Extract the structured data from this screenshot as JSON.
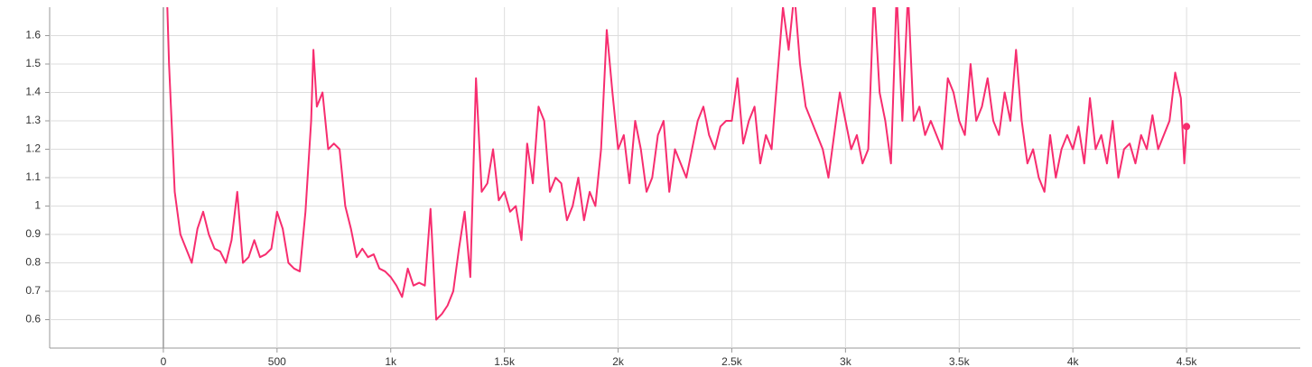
{
  "chart_data": {
    "type": "line",
    "x": [
      10,
      25,
      50,
      75,
      100,
      125,
      150,
      175,
      200,
      225,
      250,
      275,
      300,
      325,
      350,
      375,
      400,
      425,
      450,
      475,
      500,
      525,
      550,
      575,
      600,
      625,
      650,
      660,
      675,
      700,
      725,
      750,
      775,
      800,
      825,
      850,
      875,
      900,
      925,
      950,
      975,
      1000,
      1025,
      1050,
      1075,
      1100,
      1125,
      1150,
      1175,
      1200,
      1225,
      1250,
      1275,
      1300,
      1325,
      1350,
      1375,
      1400,
      1425,
      1450,
      1475,
      1500,
      1525,
      1550,
      1575,
      1600,
      1625,
      1650,
      1675,
      1700,
      1725,
      1750,
      1775,
      1800,
      1825,
      1850,
      1875,
      1900,
      1925,
      1950,
      1975,
      2000,
      2025,
      2050,
      2075,
      2100,
      2125,
      2150,
      2175,
      2200,
      2225,
      2250,
      2275,
      2300,
      2325,
      2350,
      2375,
      2400,
      2425,
      2450,
      2475,
      2500,
      2525,
      2550,
      2575,
      2600,
      2625,
      2650,
      2675,
      2700,
      2725,
      2750,
      2775,
      2800,
      2825,
      2850,
      2875,
      2900,
      2925,
      2950,
      2975,
      3000,
      3025,
      3050,
      3075,
      3100,
      3125,
      3150,
      3175,
      3200,
      3225,
      3250,
      3275,
      3300,
      3325,
      3350,
      3375,
      3400,
      3425,
      3450,
      3475,
      3500,
      3525,
      3550,
      3575,
      3600,
      3625,
      3650,
      3675,
      3700,
      3725,
      3750,
      3775,
      3800,
      3825,
      3850,
      3875,
      3900,
      3925,
      3950,
      3975,
      4000,
      4025,
      4050,
      4075,
      4100,
      4125,
      4150,
      4175,
      4200,
      4225,
      4250,
      4275,
      4300,
      4325,
      4350,
      4375,
      4400,
      4425,
      4450,
      4475,
      4490,
      4500
    ],
    "series": [
      {
        "color": "#f72d6f",
        "values": [
          1.9,
          1.5,
          1.05,
          0.9,
          0.85,
          0.8,
          0.92,
          0.98,
          0.9,
          0.85,
          0.84,
          0.8,
          0.88,
          1.05,
          0.8,
          0.82,
          0.88,
          0.82,
          0.83,
          0.85,
          0.98,
          0.92,
          0.8,
          0.78,
          0.77,
          0.98,
          1.3,
          1.55,
          1.35,
          1.4,
          1.2,
          1.22,
          1.2,
          1.0,
          0.92,
          0.82,
          0.85,
          0.82,
          0.83,
          0.78,
          0.77,
          0.75,
          0.72,
          0.68,
          0.78,
          0.72,
          0.73,
          0.72,
          0.99,
          0.6,
          0.62,
          0.65,
          0.7,
          0.85,
          0.98,
          0.75,
          1.45,
          1.05,
          1.08,
          1.2,
          1.02,
          1.05,
          0.98,
          1.0,
          0.88,
          1.22,
          1.08,
          1.35,
          1.3,
          1.05,
          1.1,
          1.08,
          0.95,
          1.0,
          1.1,
          0.95,
          1.05,
          1.0,
          1.2,
          1.62,
          1.4,
          1.2,
          1.25,
          1.08,
          1.3,
          1.2,
          1.05,
          1.1,
          1.25,
          1.3,
          1.05,
          1.2,
          1.15,
          1.1,
          1.2,
          1.3,
          1.35,
          1.25,
          1.2,
          1.28,
          1.3,
          1.3,
          1.45,
          1.22,
          1.3,
          1.35,
          1.15,
          1.25,
          1.2,
          1.45,
          1.7,
          1.55,
          1.75,
          1.5,
          1.35,
          1.3,
          1.25,
          1.2,
          1.1,
          1.25,
          1.4,
          1.3,
          1.2,
          1.25,
          1.15,
          1.2,
          1.75,
          1.4,
          1.3,
          1.15,
          1.75,
          1.3,
          1.75,
          1.3,
          1.35,
          1.25,
          1.3,
          1.25,
          1.2,
          1.45,
          1.4,
          1.3,
          1.25,
          1.5,
          1.3,
          1.35,
          1.45,
          1.3,
          1.25,
          1.4,
          1.3,
          1.55,
          1.3,
          1.15,
          1.2,
          1.1,
          1.05,
          1.25,
          1.1,
          1.2,
          1.25,
          1.2,
          1.28,
          1.15,
          1.38,
          1.2,
          1.25,
          1.15,
          1.3,
          1.1,
          1.2,
          1.22,
          1.15,
          1.25,
          1.2,
          1.32,
          1.2,
          1.25,
          1.3,
          1.47,
          1.38,
          1.15,
          1.28
        ]
      }
    ],
    "xlim": [
      -500,
      5000
    ],
    "xticks": [
      0,
      500,
      {
        "value": 1000,
        "label": "1k"
      },
      {
        "value": 1500,
        "label": "1.5k"
      },
      {
        "value": 2000,
        "label": "2k"
      },
      {
        "value": 2500,
        "label": "2.5k"
      },
      {
        "value": 3000,
        "label": "3k"
      },
      {
        "value": 3500,
        "label": "3.5k"
      },
      {
        "value": 4000,
        "label": "4k"
      },
      {
        "value": 4500,
        "label": "4.5k"
      }
    ],
    "ylim": [
      0.5,
      1.7
    ],
    "yticks": [
      0.6,
      0.7,
      0.8,
      0.9,
      1,
      1.1,
      1.2,
      1.3,
      1.4,
      1.5,
      1.6
    ],
    "grid": true
  }
}
